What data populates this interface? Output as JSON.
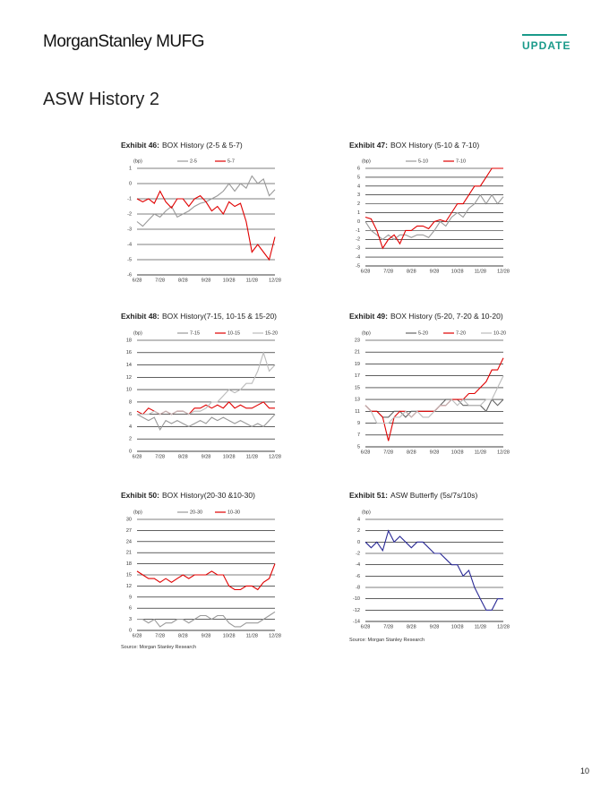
{
  "header": {
    "brand": "MorganStanley MUFG",
    "tag": "UPDATE"
  },
  "title": "ASW History 2",
  "chart_data": [
    {
      "type": "line",
      "label": "Exhibit 46:",
      "title": "BOX History (2-5 & 5-7)",
      "y_label": "(bp)",
      "categories": [
        "6/28",
        null,
        null,
        null,
        "7/28",
        null,
        null,
        null,
        "8/28",
        null,
        null,
        null,
        "9/28",
        null,
        null,
        null,
        "10/28",
        null,
        null,
        null,
        "11/28",
        null,
        null,
        null,
        "12/28"
      ],
      "series": [
        {
          "name": "2-5",
          "color": "#999999",
          "values": [
            -2.5,
            -2.8,
            -2.4,
            -2,
            -2.2,
            -1.8,
            -1.5,
            -2.2,
            -2,
            -1.8,
            -1.5,
            -1.3,
            -1.2,
            -1,
            -0.8,
            -0.5,
            0,
            -0.5,
            0,
            -0.3,
            0.5,
            0,
            0.3,
            -0.8,
            -0.4
          ]
        },
        {
          "name": "5-7",
          "color": "#e00000",
          "values": [
            -1,
            -1.2,
            -1,
            -1.3,
            -0.5,
            -1.2,
            -1.6,
            -1,
            -1,
            -1.5,
            -1,
            -0.8,
            -1.2,
            -1.8,
            -1.5,
            -2,
            -1.2,
            -1.5,
            -1.3,
            -2.5,
            -4.5,
            -4,
            -4.5,
            -5,
            -3.5
          ]
        }
      ],
      "ylim": [
        -6,
        1
      ],
      "yticks": [
        -6,
        -5,
        -4,
        -3,
        -2,
        -1,
        0,
        1
      ],
      "grid": true
    },
    {
      "type": "line",
      "label": "Exhibit 47:",
      "title": "BOX History (5-10 & 7-10)",
      "y_label": "(bp)",
      "categories": [
        "6/28",
        null,
        null,
        null,
        "7/28",
        null,
        null,
        null,
        "8/28",
        null,
        null,
        null,
        "9/28",
        null,
        null,
        null,
        "10/28",
        null,
        null,
        null,
        "11/28",
        null,
        null,
        null,
        "12/28"
      ],
      "series": [
        {
          "name": "5-10",
          "color": "#999999",
          "values": [
            0,
            -1,
            -1.5,
            -2,
            -1.5,
            -2,
            -1.5,
            -1.5,
            -1.8,
            -1.5,
            -1.5,
            -1.8,
            -1,
            0,
            -0.5,
            0.5,
            1,
            0.5,
            1.5,
            2,
            3,
            2,
            3,
            2,
            2.8
          ]
        },
        {
          "name": "7-10",
          "color": "#e00000",
          "values": [
            0.5,
            0.3,
            -1,
            -3,
            -2,
            -1.5,
            -2.5,
            -1,
            -1,
            -0.5,
            -0.5,
            -0.8,
            0,
            0.2,
            0,
            1,
            2,
            2,
            3,
            4,
            4,
            5,
            6,
            6,
            6
          ]
        }
      ],
      "ylim": [
        -5,
        6
      ],
      "yticks": [
        -5,
        -4,
        -3,
        -2,
        -1,
        0,
        1,
        2,
        3,
        4,
        5,
        6
      ],
      "grid": true
    },
    {
      "type": "line",
      "label": "Exhibit 48:",
      "title": "BOX History(7-15, 10-15 & 15-20)",
      "y_label": "(bp)",
      "categories": [
        "6/28",
        null,
        null,
        null,
        "7/28",
        null,
        null,
        null,
        "8/28",
        null,
        null,
        null,
        "9/28",
        null,
        null,
        null,
        "10/28",
        null,
        null,
        null,
        "11/28",
        null,
        null,
        null,
        "12/28"
      ],
      "series": [
        {
          "name": "7-15",
          "color": "#999999",
          "values": [
            6,
            5.5,
            5,
            5.5,
            3.5,
            5,
            4.5,
            5,
            4.5,
            4,
            4.5,
            5,
            4.5,
            5.5,
            5,
            5.5,
            5,
            4.5,
            5,
            4.5,
            4,
            4.5,
            4,
            5,
            6
          ]
        },
        {
          "name": "10-15",
          "color": "#e00000",
          "values": [
            6.5,
            6,
            7,
            6.5,
            6,
            6.5,
            6,
            6.5,
            6.5,
            6,
            7,
            7,
            7.5,
            7,
            7.5,
            7,
            8,
            7,
            7.5,
            7,
            7,
            7.5,
            8,
            7,
            7
          ]
        },
        {
          "name": "15-20",
          "color": "#bbbbbb",
          "values": [
            6,
            6,
            6,
            6.5,
            6,
            6.5,
            6,
            6.5,
            6.5,
            6,
            6.5,
            6.5,
            7,
            8,
            8,
            9,
            10,
            9.5,
            10,
            11,
            11,
            13,
            16,
            13,
            14
          ]
        }
      ],
      "ylim": [
        0,
        18
      ],
      "yticks": [
        0,
        2,
        4,
        6,
        8,
        10,
        12,
        14,
        16,
        18
      ],
      "grid": true
    },
    {
      "type": "line",
      "label": "Exhibit 49:",
      "title": "BOX History (5-20, 7-20 & 10-20)",
      "y_label": "(bp)",
      "categories": [
        "6/28",
        null,
        null,
        null,
        "7/28",
        null,
        null,
        null,
        "8/28",
        null,
        null,
        null,
        "9/28",
        null,
        null,
        null,
        "10/28",
        null,
        null,
        null,
        "11/28",
        null,
        null,
        null,
        "12/28"
      ],
      "series": [
        {
          "name": "5-20",
          "color": "#666666",
          "values": [
            12,
            11,
            11,
            10,
            10,
            11,
            11,
            10,
            11,
            11,
            11,
            11,
            11,
            12,
            13,
            13,
            13,
            12,
            12,
            12,
            12,
            11,
            13,
            12,
            13
          ]
        },
        {
          "name": "7-20",
          "color": "#e00000",
          "values": [
            12,
            11,
            11,
            10,
            6,
            10,
            11,
            11,
            10,
            11,
            11,
            11,
            11,
            12,
            12,
            13,
            13,
            13,
            14,
            14,
            15,
            16,
            18,
            18,
            20
          ]
        },
        {
          "name": "10-20",
          "color": "#bbbbbb",
          "values": [
            12,
            11,
            9,
            9,
            9,
            10,
            10,
            11,
            10,
            11,
            10,
            10,
            11,
            12,
            12,
            13,
            12,
            13,
            12,
            12,
            12,
            13,
            13,
            15,
            17
          ]
        }
      ],
      "ylim": [
        5,
        23
      ],
      "yticks": [
        5,
        7,
        9,
        11,
        13,
        15,
        17,
        19,
        21,
        23
      ],
      "grid": true
    },
    {
      "type": "line",
      "label": "Exhibit 50:",
      "title": "BOX History(20-30 &10-30)",
      "y_label": "(bp)",
      "categories": [
        "6/28",
        null,
        null,
        null,
        "7/28",
        null,
        null,
        null,
        "8/28",
        null,
        null,
        null,
        "9/28",
        null,
        null,
        null,
        "10/28",
        null,
        null,
        null,
        "11/28",
        null,
        null,
        null,
        "12/28"
      ],
      "series": [
        {
          "name": "20-30",
          "color": "#999999",
          "values": [
            3,
            3,
            2,
            3,
            1,
            2,
            2,
            3,
            3,
            2,
            3,
            4,
            4,
            3,
            4,
            4,
            2,
            1,
            1,
            2,
            2,
            2,
            3,
            4,
            5
          ]
        },
        {
          "name": "10-30",
          "color": "#e00000",
          "values": [
            16,
            15,
            14,
            14,
            13,
            14,
            13,
            14,
            15,
            14,
            15,
            15,
            15,
            16,
            15,
            15,
            12,
            11,
            11,
            12,
            12,
            11,
            13,
            14,
            18
          ]
        }
      ],
      "ylim": [
        0,
        30
      ],
      "yticks": [
        0,
        3,
        6,
        9,
        12,
        15,
        18,
        21,
        24,
        27,
        30
      ],
      "grid": true
    },
    {
      "type": "line",
      "label": "Exhibit 51:",
      "title": "ASW Butterfly (5s/7s/10s)",
      "y_label": "(bp)",
      "categories": [
        "6/28",
        null,
        null,
        null,
        "7/28",
        null,
        null,
        null,
        "8/28",
        null,
        null,
        null,
        "9/28",
        null,
        null,
        null,
        "10/28",
        null,
        null,
        null,
        "11/28",
        null,
        null,
        null,
        "12/28"
      ],
      "series": [
        {
          "color": "#2b2b96",
          "values": [
            0,
            -1,
            0,
            -1.5,
            2,
            0,
            1,
            0,
            -1,
            0,
            0,
            -1,
            -2,
            -2,
            -3,
            -4,
            -4,
            -6,
            -5,
            -8,
            -10,
            -12,
            -12,
            -10,
            -10
          ]
        }
      ],
      "ylim": [
        -14,
        4
      ],
      "yticks": [
        -14,
        -12,
        -10,
        -8,
        -6,
        -4,
        -2,
        0,
        2,
        4
      ],
      "grid": true
    }
  ],
  "sources": [
    "Source: Morgan Stanley Research",
    "Source: Morgan Stanley Research"
  ],
  "page_number": "10"
}
